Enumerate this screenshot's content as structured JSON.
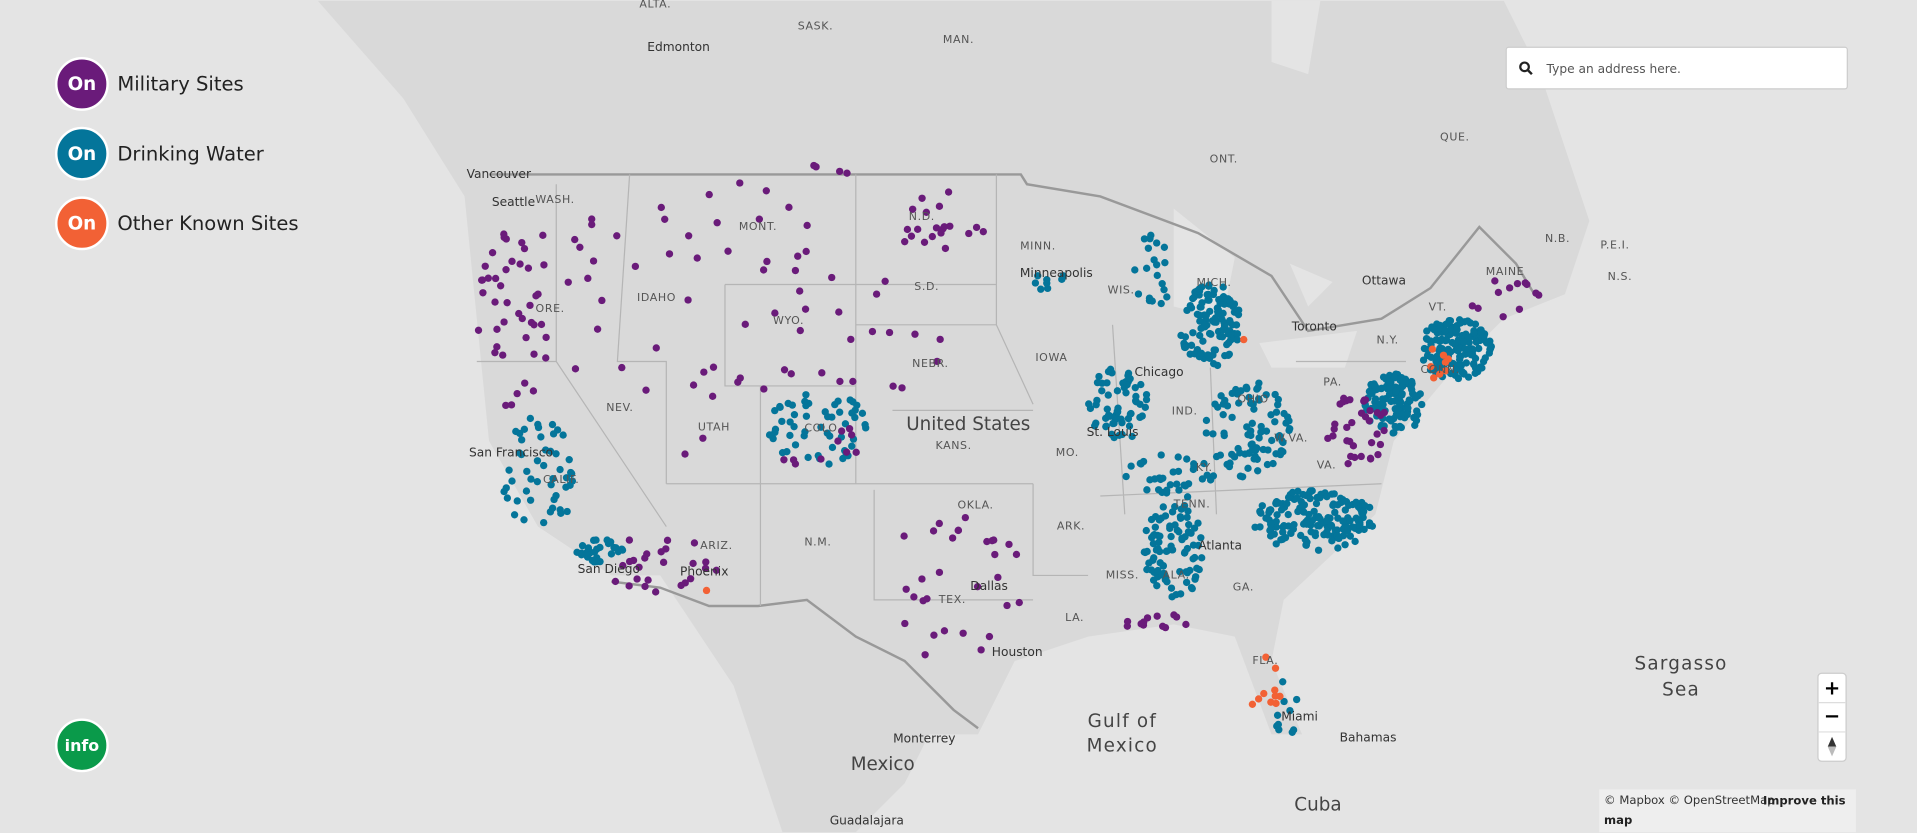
{
  "legend": [
    {
      "state": "On",
      "label": "Military Sites"
    },
    {
      "state": "On",
      "label": "Drinking Water"
    },
    {
      "state": "On",
      "label": "Other Known Sites"
    }
  ],
  "info_button": "info",
  "search": {
    "placeholder": "Type an address here."
  },
  "zoom": {
    "in": "+",
    "out": "−"
  },
  "attribution": {
    "text": "© Mapbox © OpenStreetMap",
    "link": "Improve this map"
  },
  "map_labels": [
    "ALTA.",
    "SASK.",
    "MAN.",
    "Edmonton",
    "ONT.",
    "QUE.",
    "Vancouver",
    "Seattle",
    "WASH.",
    "MONT.",
    "N.D.",
    "MINN.",
    "Minneapolis",
    "WIS.",
    "MICH.",
    "N.B.",
    "P.E.I.",
    "N.S.",
    "MAINE",
    "Ottawa",
    "Toronto",
    "N.Y.",
    "VT.",
    "CONN.",
    "PA.",
    "IDAHO",
    "ORE.",
    "WYO.",
    "S.D.",
    "NEBR.",
    "IOWA",
    "IND.",
    "OHIO",
    "Chicago",
    "NEV.",
    "UTAH",
    "COLO.",
    "United States",
    "KANS.",
    "MO.",
    "St. Louis",
    "W.VA.",
    "VA.",
    "KY.",
    "San Francisco",
    "CALIF.",
    "TENN.",
    "OKLA.",
    "ARK.",
    "ARIZ.",
    "N.M.",
    "Atlanta",
    "MISS.",
    "ALA.",
    "GA.",
    "San Diego",
    "Phoenix",
    "Dallas",
    "TEX.",
    "LA.",
    "Houston",
    "FLA.",
    "Miami",
    "Gulf of",
    "Mexico",
    "Sargasso",
    "Sea",
    "Bahamas",
    "Monterrey",
    "Mexico",
    "Cuba",
    "Guadalajara"
  ]
}
